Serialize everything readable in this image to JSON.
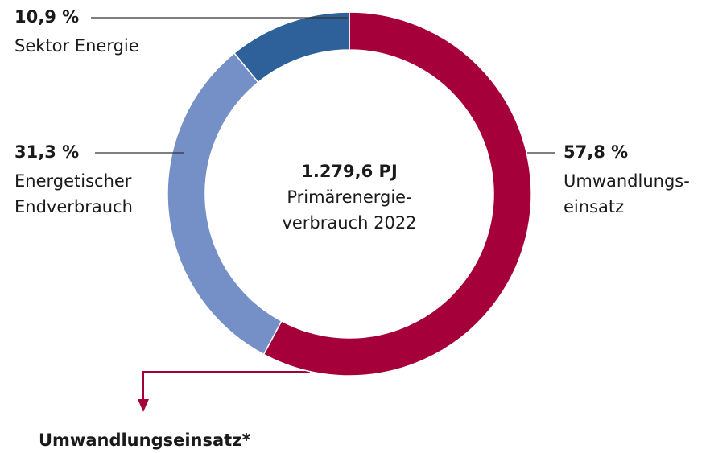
{
  "chart_data": {
    "type": "donut",
    "center_text": [
      "1.279,6 PJ",
      "Primärenergie-",
      "verbrauch 2022"
    ],
    "categories": [
      [
        "Umwandlungs-",
        "einsatz"
      ],
      [
        "Energetischer",
        "Endverbrauch"
      ],
      [
        "Sektor Energie"
      ]
    ],
    "values": [
      57.8,
      31.3,
      10.9
    ],
    "value_labels": [
      "57,8 %",
      "31,3 %",
      "10,9 %"
    ],
    "colors": [
      "#a6003b",
      "#7590c7",
      "#2e6199"
    ],
    "footnote": "Umwandlungseinsatz*"
  }
}
